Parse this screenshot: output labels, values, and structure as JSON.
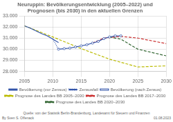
{
  "chart_data": {
    "type": "line",
    "title": "Neuruppin: Bevölkerungsentwicklung (2005–2022) und\nPrognosen (bis 2030) in den aktuellen Grenzen",
    "xlim": [
      2005,
      2030
    ],
    "xticks": [
      2005,
      2010,
      2015,
      2020,
      2025,
      2030
    ],
    "ylim": [
      28000,
      33000
    ],
    "yticks": [
      {
        "value": 28000,
        "label": "28.000"
      },
      {
        "value": 29000,
        "label": "29.000"
      },
      {
        "value": 30000,
        "label": "30.000"
      },
      {
        "value": 31000,
        "label": "31.000"
      },
      {
        "value": 32000,
        "label": "32.000"
      },
      {
        "value": 33000,
        "label": "33.000"
      }
    ],
    "grid": true,
    "legend": "bottom",
    "series": [
      {
        "name": "Bevölkerung (vor Zensus)",
        "color": "#3355aa",
        "line_style": "solid",
        "x": [
          2005,
          2006,
          2007,
          2008,
          2009,
          2010,
          2011
        ],
        "values": [
          32100,
          31900,
          31650,
          31400,
          31200,
          30900,
          30600
        ]
      },
      {
        "name": "Zensusfall",
        "color": "#3355aa",
        "line_style": "dotted",
        "x": [
          2010,
          2011
        ],
        "values": [
          30900,
          30000
        ]
      },
      {
        "name": "Bevölkerung (nach Zensus)",
        "color": "#3355aa",
        "line_style": "solid",
        "marker": "circle",
        "x": [
          2011,
          2012,
          2013,
          2014,
          2015,
          2016,
          2017,
          2018,
          2019,
          2020,
          2021,
          2022
        ],
        "values": [
          30000,
          30050,
          30100,
          30200,
          30300,
          30400,
          30550,
          30700,
          30950,
          31100,
          31200,
          31200
        ]
      },
      {
        "name": "Prognose des Landes BB 2005–2030",
        "color": "#bbbb00",
        "line_style": "dashed",
        "x": [
          2005,
          2010,
          2015,
          2020,
          2025,
          2030
        ],
        "values": [
          32100,
          31100,
          30050,
          29100,
          28400,
          28500
        ]
      },
      {
        "name": "Prognose des Landes BB 2017–2030",
        "color": "#cc3333",
        "line_style": "dashed",
        "x": [
          2017,
          2019,
          2022,
          2025,
          2030
        ],
        "values": [
          30550,
          31000,
          31150,
          31000,
          30500
        ]
      },
      {
        "name": "Prognose des Landes BB 2020–2030",
        "color": "#336633",
        "line_style": "dashed",
        "x": [
          2020,
          2022,
          2025,
          2030
        ],
        "values": [
          31100,
          30900,
          30000,
          29400
        ]
      }
    ],
    "annotations": [
      "By Sven S. Offenack",
      "Quelle: von der Statistik Berlin-Brandenburg, Landesamt für Steuern und Finanzen",
      "01.08.2023"
    ]
  }
}
